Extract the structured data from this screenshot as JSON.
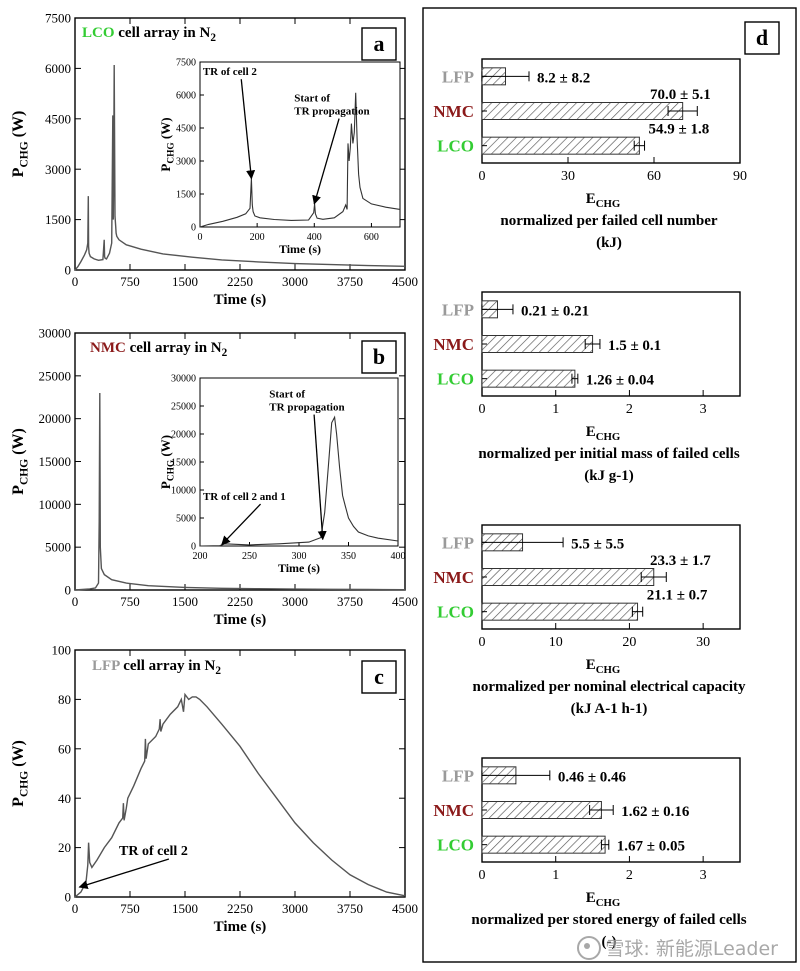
{
  "colors": {
    "lco": "#33cc33",
    "nmc": "#8b1a1a",
    "lfp": "#9a9a9a",
    "line": "#555555",
    "ink": "#000000"
  },
  "chart_data": [
    {
      "id": "a",
      "type": "line",
      "letter": "a",
      "title_parts": [
        [
          "LCO",
          "lco"
        ],
        [
          " cell array in N",
          "ink"
        ],
        [
          "2",
          "ink-sub"
        ]
      ],
      "ylabel": "P",
      "ylabel_sub": "CHG",
      "ylabel_unit": " (W)",
      "xlabel": "Time (s)",
      "xlim": [
        0,
        4500
      ],
      "ylim": [
        0,
        7500
      ],
      "xticks": [
        0,
        750,
        1500,
        2250,
        3000,
        3750,
        4500
      ],
      "yticks": [
        0,
        1500,
        3000,
        4500,
        6000,
        7500
      ],
      "x": [
        0,
        40,
        80,
        130,
        160,
        175,
        182,
        186,
        192,
        210,
        260,
        320,
        380,
        398,
        403,
        410,
        430,
        470,
        500,
        515,
        522,
        528,
        535,
        545,
        555,
        560,
        570,
        600,
        700,
        900,
        1200,
        1600,
        2000,
        2500,
        3000,
        3500,
        4000,
        4500
      ],
      "y": [
        0,
        100,
        250,
        450,
        600,
        800,
        2200,
        700,
        500,
        400,
        330,
        290,
        310,
        900,
        400,
        350,
        330,
        500,
        800,
        4600,
        1500,
        3000,
        6100,
        1600,
        1300,
        1100,
        1000,
        900,
        750,
        620,
        480,
        380,
        300,
        240,
        190,
        160,
        130,
        110
      ],
      "inset": {
        "xlabel": "Time (s)",
        "ylabel": "P",
        "ylabel_sub": "CHG",
        "ylabel_unit": " (W)",
        "xlim": [
          0,
          700
        ],
        "ylim": [
          0,
          7500
        ],
        "xticks": [
          0,
          200,
          400,
          600
        ],
        "yticks": [
          0,
          1500,
          3000,
          4500,
          6000,
          7500
        ],
        "x": [
          0,
          30,
          80,
          130,
          160,
          175,
          180,
          183,
          186,
          192,
          210,
          260,
          320,
          380,
          398,
          401,
          404,
          410,
          430,
          470,
          500,
          510,
          515,
          518,
          522,
          526,
          530,
          535,
          540,
          545,
          550,
          555,
          560,
          570,
          600,
          650,
          700
        ],
        "y": [
          0,
          120,
          260,
          440,
          600,
          850,
          2200,
          1000,
          700,
          500,
          420,
          340,
          300,
          320,
          650,
          1050,
          600,
          400,
          350,
          420,
          700,
          1000,
          800,
          3800,
          3000,
          3600,
          4700,
          3800,
          4300,
          6100,
          4000,
          2400,
          1800,
          1300,
          1050,
          900,
          800
        ],
        "annotations": [
          {
            "text": "TR of cell 2",
            "lines": [
              "TR of cell 2"
            ],
            "at": [
              180,
              2200
            ],
            "text_at": [
              10,
              6900
            ]
          },
          {
            "text": "Start of TR propagation",
            "lines": [
              "Start of",
              "TR propagation"
            ],
            "at": [
              400,
              1050
            ],
            "text_at": [
              330,
              5700
            ]
          }
        ]
      }
    },
    {
      "id": "b",
      "type": "line",
      "letter": "b",
      "title_parts": [
        [
          "NMC",
          "nmc"
        ],
        [
          " cell array in N",
          "ink"
        ],
        [
          "2",
          "ink-sub"
        ]
      ],
      "ylabel": "P",
      "ylabel_sub": "CHG",
      "ylabel_unit": " (W)",
      "xlabel": "Time (s)",
      "xlim": [
        0,
        4500
      ],
      "ylim": [
        0,
        30000
      ],
      "xticks": [
        0,
        750,
        1500,
        2250,
        3000,
        3750,
        4500
      ],
      "yticks": [
        0,
        5000,
        10000,
        15000,
        20000,
        25000,
        30000
      ],
      "x": [
        0,
        100,
        200,
        280,
        320,
        330,
        338,
        345,
        360,
        400,
        500,
        700,
        1000,
        1500,
        2000,
        2500,
        3000,
        3500,
        4000,
        4500
      ],
      "y": [
        0,
        60,
        120,
        250,
        800,
        8000,
        23000,
        5000,
        2500,
        1800,
        1200,
        800,
        500,
        300,
        200,
        150,
        110,
        80,
        60,
        40
      ],
      "inset": {
        "xlabel": "Time (s)",
        "ylabel": "P",
        "ylabel_sub": "CHG",
        "ylabel_unit": " (W)",
        "xlim": [
          200,
          400
        ],
        "ylim": [
          0,
          30000
        ],
        "xticks": [
          200,
          250,
          300,
          350,
          400
        ],
        "yticks": [
          0,
          5000,
          10000,
          15000,
          20000,
          25000,
          30000
        ],
        "x": [
          200,
          220,
          225,
          250,
          280,
          310,
          322,
          326,
          330,
          333,
          336,
          338,
          341,
          344,
          347,
          350,
          355,
          360,
          370,
          380,
          400
        ],
        "y": [
          0,
          60,
          400,
          200,
          400,
          700,
          1500,
          6000,
          15000,
          22000,
          23000,
          20000,
          14000,
          9000,
          7000,
          5000,
          3500,
          2500,
          1800,
          1400,
          900
        ],
        "annotations": [
          {
            "text": "Start of TR propagation",
            "lines": [
              "Start of",
              "TR propagation"
            ],
            "at": [
              324,
              1200
            ],
            "text_at": [
              270,
              26500
            ]
          },
          {
            "text": "TR of cell 2 and 1",
            "lines": [
              "TR of cell 2 and 1"
            ],
            "at": [
              222,
              250
            ],
            "text_at": [
              203,
              8200
            ]
          }
        ]
      }
    },
    {
      "id": "c",
      "type": "line",
      "letter": "c",
      "title_parts": [
        [
          "LFP",
          "lfp"
        ],
        [
          " cell array in N",
          "ink"
        ],
        [
          "2",
          "ink-sub"
        ]
      ],
      "ylabel": "P",
      "ylabel_sub": "CHG",
      "ylabel_unit": " (W)",
      "xlabel": "Time (s)",
      "xlim": [
        0,
        4500
      ],
      "ylim": [
        0,
        100
      ],
      "xticks": [
        0,
        750,
        1500,
        2250,
        3000,
        3750,
        4500
      ],
      "yticks": [
        0,
        20,
        40,
        60,
        80,
        100
      ],
      "x": [
        0,
        80,
        150,
        175,
        185,
        200,
        230,
        300,
        400,
        500,
        600,
        650,
        660,
        670,
        700,
        720,
        800,
        900,
        950,
        960,
        970,
        1000,
        1100,
        1150,
        1160,
        1170,
        1200,
        1300,
        1400,
        1450,
        1480,
        1500,
        1550,
        1600,
        1650,
        1700,
        1800,
        2000,
        2250,
        2500,
        2750,
        3000,
        3250,
        3500,
        3750,
        4000,
        4250,
        4500
      ],
      "y": [
        0,
        2,
        6,
        13,
        22,
        14,
        12,
        15,
        20,
        24,
        30,
        32,
        38,
        31,
        36,
        40,
        45,
        52,
        55,
        64,
        56,
        62,
        65,
        68,
        72,
        67,
        70,
        74,
        77,
        80,
        75,
        82,
        80,
        81,
        81,
        80,
        77,
        70,
        61,
        50,
        40,
        30,
        22,
        15,
        9,
        5,
        2,
        0.5
      ],
      "annotations": [
        {
          "text": "TR of cell 2",
          "lines": [
            "TR of cell 2"
          ],
          "at": [
            60,
            4
          ],
          "text_at": [
            600,
            17
          ]
        }
      ]
    },
    {
      "id": "d",
      "type": "bar",
      "letter": "d",
      "categories": [
        "LFP",
        "NMC",
        "LCO"
      ],
      "category_colors": [
        "lfp",
        "nmc",
        "lco"
      ],
      "subplots": [
        {
          "values": [
            8.2,
            70.0,
            54.9
          ],
          "errors": [
            8.2,
            5.1,
            1.8
          ],
          "labels": [
            "8.2 ± 8.2",
            "70.0 ± 5.1",
            "54.9 ± 1.8"
          ],
          "xlim": [
            0,
            90
          ],
          "xticks": [
            0,
            30,
            60,
            90
          ],
          "xlabel": "E",
          "xlabel_sub": "CHG",
          "caption": [
            "normalized per failed cell number",
            "(kJ)"
          ]
        },
        {
          "values": [
            0.21,
            1.5,
            1.26
          ],
          "errors": [
            0.21,
            0.1,
            0.04
          ],
          "labels": [
            "0.21 ± 0.21",
            "1.5 ± 0.1",
            "1.26 ± 0.04"
          ],
          "xlim": [
            0,
            3.5
          ],
          "xticks": [
            0,
            1,
            2,
            3
          ],
          "xlabel": "E",
          "xlabel_sub": "CHG",
          "caption": [
            "normalized per initial mass of failed cells",
            "(kJ g-1)"
          ]
        },
        {
          "values": [
            5.5,
            23.3,
            21.1
          ],
          "errors": [
            5.5,
            1.7,
            0.7
          ],
          "labels": [
            "5.5 ± 5.5",
            "23.3 ± 1.7",
            "21.1 ± 0.7"
          ],
          "xlim": [
            0,
            35
          ],
          "xticks": [
            0,
            10,
            20,
            30
          ],
          "xlabel": "E",
          "xlabel_sub": "CHG",
          "caption": [
            "normalized per nominal electrical capacity",
            "(kJ A-1 h-1)"
          ]
        },
        {
          "values": [
            0.46,
            1.62,
            1.67
          ],
          "errors": [
            0.46,
            0.16,
            0.05
          ],
          "labels": [
            "0.46 ± 0.46",
            "1.62 ± 0.16",
            "1.67 ± 0.05"
          ],
          "xlim": [
            0,
            3.5
          ],
          "xticks": [
            0,
            1,
            2,
            3
          ],
          "xlabel": "E",
          "xlabel_sub": "CHG",
          "caption": [
            "normalized per stored energy of failed cells",
            "(-)"
          ]
        }
      ]
    }
  ],
  "watermark": {
    "text": "雪球: 新能源Leader"
  }
}
